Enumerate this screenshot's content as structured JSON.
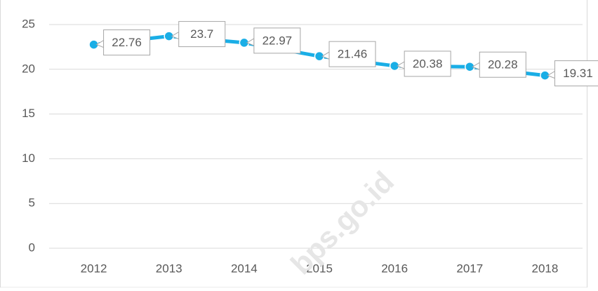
{
  "chart_data": {
    "type": "line",
    "categories": [
      "2012",
      "2013",
      "2014",
      "2015",
      "2016",
      "2017",
      "2018"
    ],
    "series": [
      {
        "name": "value",
        "color": "#1aaee6",
        "values": [
          22.76,
          23.7,
          22.97,
          21.46,
          20.38,
          20.28,
          19.31
        ]
      }
    ],
    "ylim": [
      0,
      25
    ],
    "yticks": [
      0,
      5,
      10,
      15,
      20,
      25
    ],
    "grid": true,
    "watermark": "bps.go.id"
  }
}
